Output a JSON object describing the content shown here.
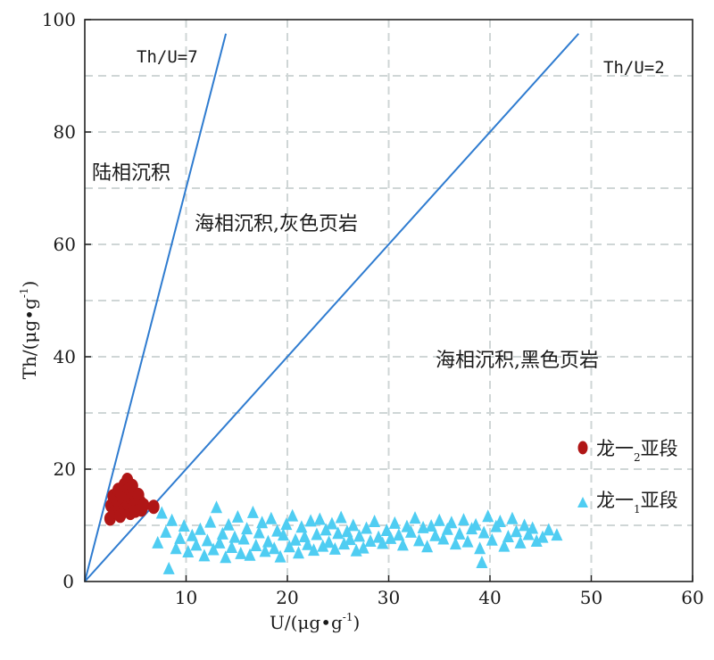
{
  "chart_data": {
    "type": "scatter",
    "xlabel": "U/(μg•g⁻¹)",
    "ylabel": "Th/(μg•g⁻¹)",
    "xlim": [
      0,
      60
    ],
    "ylim": [
      0,
      100
    ],
    "xticks": [
      "10",
      "20",
      "30",
      "40",
      "50",
      "60"
    ],
    "yticks": [
      "0",
      "20",
      "40",
      "60",
      "80",
      "100"
    ],
    "grid": true,
    "legend_position": "bottom-right",
    "reference_lines": [
      {
        "label": "Th/U=7",
        "slope": 7
      },
      {
        "label": "Th/U=2",
        "slope": 2
      }
    ],
    "regions": [
      {
        "label": "陆相沉积"
      },
      {
        "label": "海相沉积,灰色页岩"
      },
      {
        "label": "海相沉积,黑色页岩"
      }
    ],
    "series": [
      {
        "name": "龙一₂亚段",
        "marker": "circle",
        "color": "#b01616",
        "points": [
          [
            2.5,
            11.2
          ],
          [
            2.6,
            13.5
          ],
          [
            2.8,
            15.2
          ],
          [
            3.0,
            12.4
          ],
          [
            3.1,
            14.6
          ],
          [
            3.3,
            16.3
          ],
          [
            3.4,
            13.1
          ],
          [
            3.5,
            11.7
          ],
          [
            3.6,
            15.8
          ],
          [
            3.8,
            14.0
          ],
          [
            3.9,
            17.2
          ],
          [
            4.0,
            12.9
          ],
          [
            4.1,
            15.0
          ],
          [
            4.2,
            18.1
          ],
          [
            4.3,
            13.7
          ],
          [
            4.4,
            16.5
          ],
          [
            4.5,
            12.2
          ],
          [
            4.6,
            14.8
          ],
          [
            4.7,
            17.0
          ],
          [
            4.8,
            13.4
          ],
          [
            4.9,
            15.6
          ],
          [
            5.0,
            12.6
          ],
          [
            5.1,
            14.3
          ],
          [
            5.3,
            15.4
          ],
          [
            5.4,
            13.0
          ],
          [
            5.5,
            14.1
          ],
          [
            5.6,
            12.8
          ],
          [
            5.8,
            13.6
          ],
          [
            6.8,
            13.3
          ]
        ]
      },
      {
        "name": "龙一₁亚段",
        "marker": "triangle",
        "color": "#4fcdf2",
        "points": [
          [
            7.2,
            7.0
          ],
          [
            7.6,
            12.3
          ],
          [
            8.0,
            8.9
          ],
          [
            8.3,
            2.4
          ],
          [
            8.6,
            11.0
          ],
          [
            9.0,
            6.0
          ],
          [
            9.4,
            7.8
          ],
          [
            9.8,
            10.0
          ],
          [
            10.2,
            5.4
          ],
          [
            10.6,
            8.3
          ],
          [
            11.0,
            6.6
          ],
          [
            11.4,
            9.4
          ],
          [
            11.8,
            4.7
          ],
          [
            12.1,
            7.4
          ],
          [
            12.4,
            10.7
          ],
          [
            12.7,
            5.8
          ],
          [
            13.0,
            13.3
          ],
          [
            13.3,
            7.0
          ],
          [
            13.6,
            8.6
          ],
          [
            13.9,
            4.4
          ],
          [
            14.2,
            10.2
          ],
          [
            14.5,
            6.2
          ],
          [
            14.8,
            8.0
          ],
          [
            15.1,
            11.6
          ],
          [
            15.4,
            5.1
          ],
          [
            15.7,
            7.7
          ],
          [
            16.0,
            9.5
          ],
          [
            16.3,
            4.8
          ],
          [
            16.6,
            12.4
          ],
          [
            16.9,
            6.5
          ],
          [
            17.2,
            8.8
          ],
          [
            17.5,
            10.6
          ],
          [
            17.8,
            5.5
          ],
          [
            18.1,
            7.2
          ],
          [
            18.4,
            11.3
          ],
          [
            18.7,
            6.0
          ],
          [
            19.0,
            9.1
          ],
          [
            19.3,
            4.5
          ],
          [
            19.6,
            8.4
          ],
          [
            19.9,
            10.3
          ],
          [
            20.2,
            6.3
          ],
          [
            20.5,
            11.8
          ],
          [
            20.8,
            7.5
          ],
          [
            21.1,
            5.2
          ],
          [
            21.4,
            9.8
          ],
          [
            21.7,
            8.1
          ],
          [
            22.0,
            6.7
          ],
          [
            22.3,
            10.9
          ],
          [
            22.6,
            5.7
          ],
          [
            22.9,
            8.5
          ],
          [
            23.2,
            11.2
          ],
          [
            23.5,
            6.4
          ],
          [
            23.8,
            9.3
          ],
          [
            24.1,
            7.1
          ],
          [
            24.4,
            10.4
          ],
          [
            24.7,
            5.9
          ],
          [
            25.0,
            8.7
          ],
          [
            25.3,
            11.5
          ],
          [
            25.6,
            6.8
          ],
          [
            25.9,
            9.0
          ],
          [
            26.2,
            7.6
          ],
          [
            26.5,
            10.1
          ],
          [
            26.8,
            5.6
          ],
          [
            27.1,
            8.2
          ],
          [
            27.5,
            6.1
          ],
          [
            27.8,
            9.6
          ],
          [
            28.2,
            7.3
          ],
          [
            28.6,
            10.8
          ],
          [
            29.0,
            8.0
          ],
          [
            29.4,
            6.9
          ],
          [
            29.8,
            9.2
          ],
          [
            30.2,
            7.8
          ],
          [
            30.6,
            10.5
          ],
          [
            31.0,
            8.4
          ],
          [
            31.4,
            6.6
          ],
          [
            31.8,
            9.9
          ],
          [
            32.2,
            8.9
          ],
          [
            32.6,
            11.4
          ],
          [
            33.0,
            7.4
          ],
          [
            33.4,
            9.7
          ],
          [
            33.8,
            6.3
          ],
          [
            34.2,
            10.0
          ],
          [
            34.6,
            8.3
          ],
          [
            35.0,
            11.0
          ],
          [
            35.4,
            7.7
          ],
          [
            35.8,
            9.4
          ],
          [
            36.2,
            10.6
          ],
          [
            36.6,
            6.8
          ],
          [
            37.0,
            8.6
          ],
          [
            37.4,
            11.1
          ],
          [
            37.8,
            7.2
          ],
          [
            38.2,
            9.5
          ],
          [
            38.6,
            10.2
          ],
          [
            39.0,
            6.0
          ],
          [
            39.2,
            3.5
          ],
          [
            39.4,
            8.8
          ],
          [
            39.8,
            11.7
          ],
          [
            40.2,
            7.5
          ],
          [
            40.6,
            9.9
          ],
          [
            41.0,
            10.8
          ],
          [
            41.4,
            6.4
          ],
          [
            41.8,
            8.1
          ],
          [
            42.2,
            11.3
          ],
          [
            42.6,
            9.0
          ],
          [
            43.0,
            7.0
          ],
          [
            43.4,
            10.1
          ],
          [
            43.8,
            8.5
          ],
          [
            44.2,
            9.6
          ],
          [
            44.6,
            7.3
          ],
          [
            45.2,
            8.0
          ],
          [
            45.8,
            9.3
          ],
          [
            46.6,
            8.4
          ]
        ]
      }
    ]
  }
}
